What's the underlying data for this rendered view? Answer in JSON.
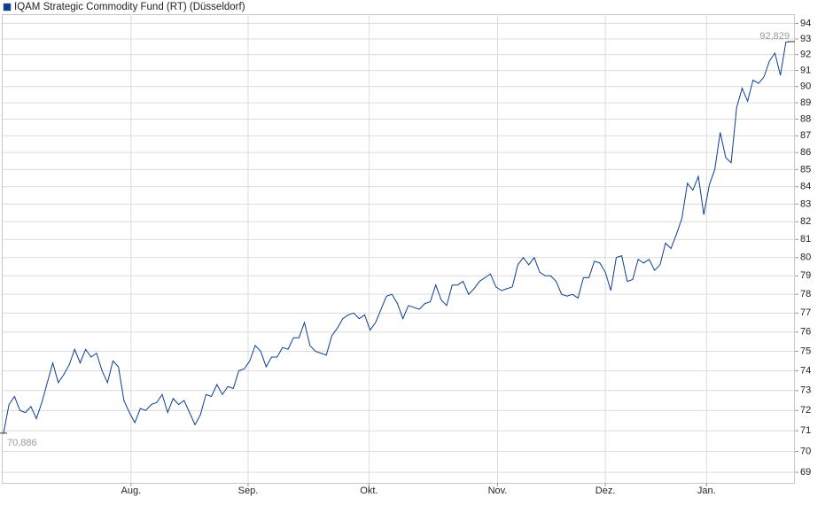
{
  "chart_data": {
    "type": "line",
    "title": "IQAM Strategic Commodity Fund (RT) (Düsseldorf)",
    "log_scale": true,
    "grid": true,
    "series": [
      {
        "name": "IQAM Strategic Commodity Fund (RT) (Düsseldorf)",
        "color": "#0c3f91",
        "values": [
          70.886,
          72.3,
          72.7,
          72.0,
          71.9,
          72.2,
          71.6,
          72.4,
          73.4,
          74.4,
          73.4,
          73.8,
          74.3,
          75.1,
          74.4,
          75.1,
          74.7,
          74.9,
          74.0,
          73.4,
          74.5,
          74.2,
          72.5,
          71.9,
          71.4,
          72.1,
          72.0,
          72.3,
          72.4,
          72.8,
          71.9,
          72.6,
          72.3,
          72.5,
          71.9,
          71.3,
          71.8,
          72.8,
          72.7,
          73.3,
          72.8,
          73.2,
          73.1,
          74.0,
          74.1,
          74.5,
          75.3,
          75.0,
          74.2,
          74.7,
          74.7,
          75.2,
          75.1,
          75.7,
          75.7,
          76.5,
          75.3,
          75.0,
          74.9,
          74.8,
          75.8,
          76.2,
          76.7,
          76.9,
          77.0,
          76.7,
          76.9,
          76.1,
          76.5,
          77.2,
          77.9,
          78.0,
          77.5,
          76.7,
          77.4,
          77.3,
          77.2,
          77.5,
          77.6,
          78.5,
          77.7,
          77.4,
          78.5,
          78.5,
          78.7,
          78.0,
          78.3,
          78.7,
          78.9,
          79.1,
          78.4,
          78.2,
          78.3,
          78.4,
          79.6,
          80.0,
          79.6,
          80.0,
          79.2,
          79.0,
          79.0,
          78.7,
          78.0,
          77.9,
          78.0,
          77.8,
          78.9,
          78.9,
          79.8,
          79.7,
          79.2,
          78.2,
          80.0,
          80.1,
          78.7,
          78.8,
          79.9,
          79.7,
          79.9,
          79.3,
          79.6,
          80.8,
          80.5,
          81.3,
          82.2,
          84.2,
          83.8,
          84.6,
          82.4,
          84.1,
          85.0,
          87.2,
          85.7,
          85.4,
          88.7,
          89.9,
          89.1,
          90.4,
          90.2,
          90.6,
          91.6,
          92.1,
          90.7,
          92.8,
          92.829
        ]
      }
    ],
    "annotations": [
      {
        "x": 0,
        "label": "70,886"
      },
      {
        "x": 144,
        "label": "92,829"
      }
    ],
    "xlim": [
      0,
      144
    ],
    "xticks": [
      {
        "value": 23.3,
        "label": "Aug."
      },
      {
        "value": 44.7,
        "label": "Sep."
      },
      {
        "value": 66.8,
        "label": "Okt."
      },
      {
        "value": 90.3,
        "label": "Nov."
      },
      {
        "value": 110,
        "label": "Dez."
      },
      {
        "value": 128.5,
        "label": "Jan."
      }
    ],
    "ylim": [
      68.5,
      94.6
    ],
    "yticks": [
      69,
      70,
      71,
      72,
      73,
      74,
      75,
      76,
      77,
      78,
      79,
      80,
      81,
      82,
      83,
      84,
      85,
      86,
      87,
      88,
      89,
      90,
      91,
      92,
      93,
      94
    ]
  }
}
